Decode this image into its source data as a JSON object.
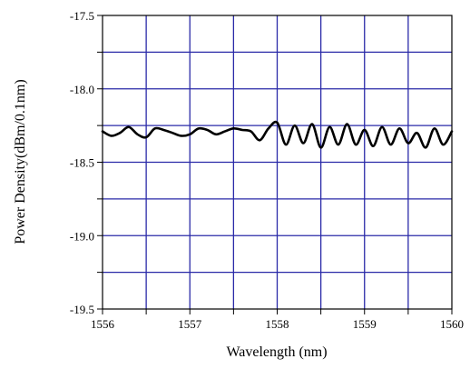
{
  "chart_data": {
    "type": "line",
    "title": "",
    "xlabel": "Wavelength (nm)",
    "ylabel": "Power Density(dBm/0.1nm)",
    "xlim": [
      1556,
      1560
    ],
    "ylim": [
      -19.5,
      -17.5
    ],
    "x_ticks": [
      1556,
      1556.5,
      1557,
      1557.5,
      1558,
      1558.5,
      1559,
      1559.5,
      1560
    ],
    "x_tick_labels": [
      "1556",
      "",
      "1557",
      "",
      "1558",
      "",
      "1559",
      "",
      "1560"
    ],
    "y_ticks": [
      -17.5,
      -17.75,
      -18.0,
      -18.25,
      -18.5,
      -18.75,
      -19.0,
      -19.25,
      -19.5
    ],
    "y_tick_labels": [
      "-17.5",
      "",
      "-18.0",
      "",
      "-18.5",
      "",
      "-19.0",
      "",
      "-19.5"
    ],
    "grid": true,
    "grid_color": "#2a2aa8",
    "line_color": "#000000",
    "series": [
      {
        "values_description": "ripple",
        "x": [
          1556.0,
          1556.1,
          1556.2,
          1556.3,
          1556.4,
          1556.5,
          1556.6,
          1556.7,
          1556.8,
          1556.9,
          1557.0,
          1557.1,
          1557.2,
          1557.3,
          1557.4,
          1557.5,
          1557.6,
          1557.7,
          1557.8,
          1557.9,
          1558.0,
          1558.1,
          1558.2,
          1558.3,
          1558.4,
          1558.5,
          1558.6,
          1558.7,
          1558.8,
          1558.9,
          1559.0,
          1559.1,
          1559.2,
          1559.3,
          1559.4,
          1559.5,
          1559.6,
          1559.7,
          1559.8,
          1559.9,
          1560.0
        ],
        "y": [
          -18.29,
          -18.32,
          -18.3,
          -18.26,
          -18.31,
          -18.33,
          -18.27,
          -18.28,
          -18.3,
          -18.32,
          -18.31,
          -18.27,
          -18.28,
          -18.31,
          -18.29,
          -18.27,
          -18.28,
          -18.29,
          -18.35,
          -18.27,
          -18.23,
          -18.38,
          -18.25,
          -18.37,
          -18.24,
          -18.4,
          -18.26,
          -18.38,
          -18.24,
          -18.38,
          -18.28,
          -18.39,
          -18.26,
          -18.38,
          -18.27,
          -18.37,
          -18.3,
          -18.4,
          -18.27,
          -18.38,
          -18.29
        ]
      }
    ]
  }
}
